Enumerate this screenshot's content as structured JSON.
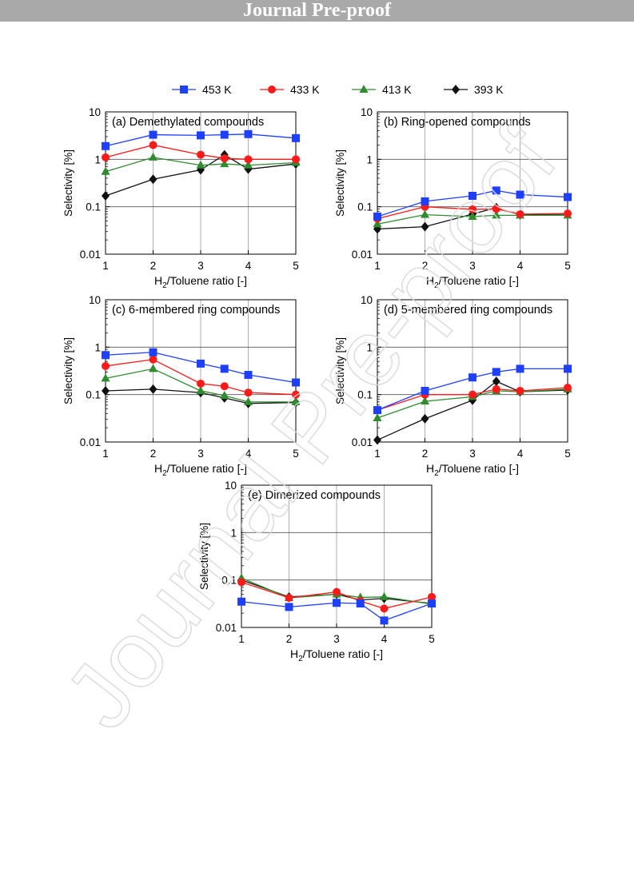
{
  "page": {
    "header": "Journal Pre-proof",
    "watermark": "Journal Pre-proof"
  },
  "legend": {
    "entries": [
      {
        "label": "453 K",
        "color": "#1f3fff",
        "marker": "square"
      },
      {
        "label": "433 K",
        "color": "#ff1a1a",
        "marker": "circle"
      },
      {
        "label": "413 K",
        "color": "#2e8b2e",
        "marker": "triangle"
      },
      {
        "label": "393 K",
        "color": "#111111",
        "marker": "diamond"
      }
    ]
  },
  "chart_data": [
    {
      "type": "line",
      "title": "(a) Demethylated compounds",
      "xlabel": "H2/Toluene ratio [-]",
      "ylabel": "Selectivity [%]",
      "xlim": [
        1,
        5
      ],
      "ylim": [
        0.01,
        10
      ],
      "yscale": "log",
      "xticks": [
        "1",
        "2",
        "3",
        "4",
        "5"
      ],
      "yticks": [
        "0.01",
        "0.1",
        "1",
        "10"
      ],
      "grid": true,
      "x": [
        1,
        2,
        3,
        3.5,
        4,
        5
      ],
      "series": [
        {
          "name": "453 K",
          "values": [
            1.9,
            3.3,
            3.2,
            3.3,
            3.4,
            2.8
          ]
        },
        {
          "name": "433 K",
          "values": [
            1.1,
            2.0,
            1.25,
            1.05,
            1.0,
            1.0
          ]
        },
        {
          "name": "413 K",
          "values": [
            0.55,
            1.1,
            0.75,
            0.8,
            0.75,
            0.85
          ]
        },
        {
          "name": "393 K",
          "values": [
            0.17,
            0.38,
            0.6,
            1.25,
            0.62,
            0.8
          ]
        }
      ]
    },
    {
      "type": "line",
      "title": "(b) Ring-opened compounds",
      "xlabel": "H2/Toluene ratio [-]",
      "ylabel": "Selectivity [%]",
      "xlim": [
        1,
        5
      ],
      "ylim": [
        0.01,
        10
      ],
      "yscale": "log",
      "xticks": [
        "1",
        "2",
        "3",
        "4",
        "5"
      ],
      "yticks": [
        "0.01",
        "0.1",
        "1",
        "10"
      ],
      "grid": true,
      "x": [
        1,
        2,
        3,
        3.5,
        4,
        5
      ],
      "series": [
        {
          "name": "453 K",
          "values": [
            0.062,
            0.13,
            0.17,
            0.22,
            0.18,
            0.16
          ]
        },
        {
          "name": "433 K",
          "values": [
            0.056,
            0.1,
            0.088,
            0.09,
            0.07,
            0.072
          ]
        },
        {
          "name": "413 K",
          "values": [
            0.043,
            0.068,
            0.062,
            0.066,
            0.066,
            0.066
          ]
        },
        {
          "name": "393 K",
          "values": [
            0.034,
            0.038,
            0.07,
            0.096,
            0.068,
            0.07
          ]
        }
      ]
    },
    {
      "type": "line",
      "title": "(c) 6-membered ring compounds",
      "xlabel": "H2/Toluene ratio [-]",
      "ylabel": "Selectivity [%]",
      "xlim": [
        1,
        5
      ],
      "ylim": [
        0.01,
        10
      ],
      "yscale": "log",
      "xticks": [
        "1",
        "2",
        "3",
        "4",
        "5"
      ],
      "yticks": [
        "0.01",
        "0.1",
        "1",
        "10"
      ],
      "grid": true,
      "x": [
        1,
        2,
        3,
        3.5,
        4,
        5
      ],
      "series": [
        {
          "name": "453 K",
          "values": [
            0.68,
            0.78,
            0.45,
            0.35,
            0.26,
            0.18
          ]
        },
        {
          "name": "433 K",
          "values": [
            0.4,
            0.55,
            0.17,
            0.15,
            0.11,
            0.1
          ]
        },
        {
          "name": "413 K",
          "values": [
            0.22,
            0.35,
            0.12,
            0.095,
            0.07,
            0.07
          ]
        },
        {
          "name": "393 K",
          "values": [
            0.12,
            0.13,
            0.11,
            0.085,
            0.065,
            0.068
          ]
        }
      ]
    },
    {
      "type": "line",
      "title": "(d) 5-membered ring compounds",
      "xlabel": "H2/Toluene ratio [-]",
      "ylabel": "Selectivity [%]",
      "xlim": [
        1,
        5
      ],
      "ylim": [
        0.01,
        10
      ],
      "yscale": "log",
      "xticks": [
        "1",
        "2",
        "3",
        "4",
        "5"
      ],
      "yticks": [
        "0.01",
        "0.1",
        "1",
        "10"
      ],
      "grid": true,
      "x": [
        1,
        2,
        3,
        3.5,
        4,
        5
      ],
      "series": [
        {
          "name": "453 K",
          "values": [
            0.047,
            0.12,
            0.23,
            0.3,
            0.35,
            0.35
          ]
        },
        {
          "name": "433 K",
          "values": [
            0.047,
            0.1,
            0.1,
            0.13,
            0.12,
            0.14
          ]
        },
        {
          "name": "413 K",
          "values": [
            0.032,
            0.072,
            0.09,
            0.12,
            0.115,
            0.13
          ]
        },
        {
          "name": "393 K",
          "values": [
            0.011,
            0.031,
            0.076,
            0.19,
            0.115,
            0.125
          ]
        }
      ]
    },
    {
      "type": "line",
      "title": "(e) Dimerized compounds",
      "xlabel": "H2/Toluene ratio [-]",
      "ylabel": "Selectivity [%]",
      "xlim": [
        1,
        5
      ],
      "ylim": [
        0.01,
        10
      ],
      "yscale": "log",
      "xticks": [
        "1",
        "2",
        "3",
        "4",
        "5"
      ],
      "yticks": [
        "0.01",
        "0.1",
        "1",
        "10"
      ],
      "grid": true,
      "x": [
        1,
        2,
        3,
        3.5,
        4,
        5
      ],
      "series": [
        {
          "name": "453 K",
          "values": [
            0.035,
            0.027,
            0.033,
            0.032,
            0.014,
            0.032
          ]
        },
        {
          "name": "433 K",
          "values": [
            0.09,
            0.042,
            0.056,
            0.036,
            0.025,
            0.044
          ]
        },
        {
          "name": "413 K",
          "values": [
            0.11,
            0.042,
            0.05,
            0.043,
            0.044,
            0.031
          ]
        },
        {
          "name": "393 K",
          "values": [
            0.1,
            0.044,
            0.05,
            0.038,
            0.041,
            0.032
          ]
        }
      ]
    }
  ]
}
